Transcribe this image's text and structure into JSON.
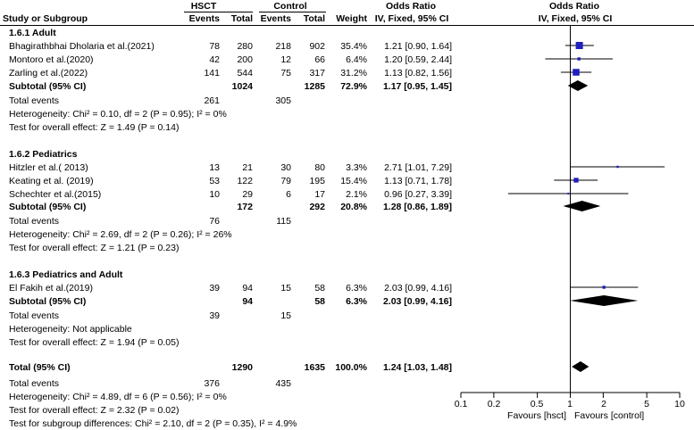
{
  "header": {
    "group1": "HSCT",
    "group2": "Control",
    "col_study": "Study or Subgroup",
    "col_events1": "Events",
    "col_total1": "Total",
    "col_events2": "Events",
    "col_total2": "Total",
    "col_weight": "Weight",
    "col_or_title": "Odds Ratio",
    "col_or_method": "IV, Fixed, 95% CI",
    "plot_title": "Odds Ratio",
    "plot_method": "IV, Fixed, 95% CI"
  },
  "sections": [
    {
      "title": "1.6.1 Adult",
      "studies": [
        {
          "name": "Bhagirathbhai Dholaria et al.(2021)",
          "e1": "78",
          "t1": "280",
          "e2": "218",
          "t2": "902",
          "weight": "35.4%",
          "ci_text": "1.21 [0.90, 1.64]"
        },
        {
          "name": "Montoro et al.(2020)",
          "e1": "42",
          "t1": "200",
          "e2": "12",
          "t2": "66",
          "weight": "6.4%",
          "ci_text": "1.20 [0.59, 2.44]"
        },
        {
          "name": "Zarling et al.(2022)",
          "e1": "141",
          "t1": "544",
          "e2": "75",
          "t2": "317",
          "weight": "31.2%",
          "ci_text": "1.13 [0.82, 1.56]"
        }
      ],
      "subtotal": {
        "label": "Subtotal (95% CI)",
        "t1": "1024",
        "t2": "1285",
        "weight": "72.9%",
        "ci_text": "1.17 [0.95, 1.45]"
      },
      "total_events": {
        "label": "Total events",
        "e1": "261",
        "e2": "305"
      },
      "heterogeneity": "Heterogeneity: Chi² = 0.10, df = 2 (P = 0.95); I² = 0%",
      "overall": "Test for overall effect: Z = 1.49 (P = 0.14)"
    },
    {
      "title": "1.6.2 Pediatrics",
      "studies": [
        {
          "name": "Hitzler et al.( 2013)",
          "e1": "13",
          "t1": "21",
          "e2": "30",
          "t2": "80",
          "weight": "3.3%",
          "ci_text": "2.71 [1.01, 7.29]"
        },
        {
          "name": "Keating et al. (2019)",
          "e1": "53",
          "t1": "122",
          "e2": "79",
          "t2": "195",
          "weight": "15.4%",
          "ci_text": "1.13 [0.71, 1.78]"
        },
        {
          "name": "Schechter et al.(2015)",
          "e1": "10",
          "t1": "29",
          "e2": "6",
          "t2": "17",
          "weight": "2.1%",
          "ci_text": "0.96 [0.27, 3.39]"
        }
      ],
      "subtotal": {
        "label": "Subtotal (95% CI)",
        "t1": "172",
        "t2": "292",
        "weight": "20.8%",
        "ci_text": "1.28 [0.86, 1.89]"
      },
      "total_events": {
        "label": "Total events",
        "e1": "76",
        "e2": "115"
      },
      "heterogeneity": "Heterogeneity: Chi² = 2.69, df = 2 (P = 0.26); I² = 26%",
      "overall": "Test for overall effect: Z = 1.21 (P = 0.23)"
    },
    {
      "title": "1.6.3 Pediatrics and Adult",
      "studies": [
        {
          "name": "El Fakih et al.(2019)",
          "e1": "39",
          "t1": "94",
          "e2": "15",
          "t2": "58",
          "weight": "6.3%",
          "ci_text": "2.03 [0.99, 4.16]"
        }
      ],
      "subtotal": {
        "label": "Subtotal (95% CI)",
        "t1": "94",
        "t2": "58",
        "weight": "6.3%",
        "ci_text": "2.03 [0.99, 4.16]"
      },
      "total_events": {
        "label": "Total events",
        "e1": "39",
        "e2": "15"
      },
      "heterogeneity": "Heterogeneity: Not applicable",
      "overall": "Test for overall effect: Z = 1.94 (P = 0.05)"
    }
  ],
  "total": {
    "label": "Total (95% CI)",
    "t1": "1290",
    "t2": "1635",
    "weight": "100.0%",
    "ci_text": "1.24 [1.03, 1.48]",
    "events_label": "Total events",
    "e1": "376",
    "e2": "435",
    "heterogeneity": "Heterogeneity: Chi² = 4.89, df = 6 (P = 0.56); I² = 0%",
    "overall": "Test for overall effect: Z = 2.32 (P = 0.02)",
    "subgroup": "Test for subgroup differences: Chi² = 2.10, df = 2 (P = 0.35), I² = 4.9%"
  },
  "axis": {
    "ticks": [
      "0.1",
      "0.2",
      "0.5",
      "1",
      "2",
      "5",
      "10"
    ],
    "favours_left": "Favours [hsct]",
    "favours_right": "Favours [control]"
  },
  "colors": {
    "study_marker": "#1f1fbf",
    "diamond": "#000000"
  },
  "chart_data": {
    "type": "forest",
    "scale": "log",
    "xlim": [
      0.1,
      10
    ],
    "xticks": [
      0.1,
      0.2,
      0.5,
      1,
      2,
      5,
      10
    ],
    "studies": [
      {
        "name": "Bhagirathbhai Dholaria et al.(2021)",
        "group": "1.6.1 Adult",
        "or": 1.21,
        "lo": 0.9,
        "hi": 1.64,
        "weight": 35.4
      },
      {
        "name": "Montoro et al.(2020)",
        "group": "1.6.1 Adult",
        "or": 1.2,
        "lo": 0.59,
        "hi": 2.44,
        "weight": 6.4
      },
      {
        "name": "Zarling et al.(2022)",
        "group": "1.6.1 Adult",
        "or": 1.13,
        "lo": 0.82,
        "hi": 1.56,
        "weight": 31.2
      },
      {
        "name": "Hitzler et al.( 2013)",
        "group": "1.6.2 Pediatrics",
        "or": 2.71,
        "lo": 1.01,
        "hi": 7.29,
        "weight": 3.3
      },
      {
        "name": "Keating et al. (2019)",
        "group": "1.6.2 Pediatrics",
        "or": 1.13,
        "lo": 0.71,
        "hi": 1.78,
        "weight": 15.4
      },
      {
        "name": "Schechter et al.(2015)",
        "group": "1.6.2 Pediatrics",
        "or": 0.96,
        "lo": 0.27,
        "hi": 3.39,
        "weight": 2.1
      },
      {
        "name": "El Fakih et al.(2019)",
        "group": "1.6.3 Pediatrics and Adult",
        "or": 2.03,
        "lo": 0.99,
        "hi": 4.16,
        "weight": 6.3
      }
    ],
    "subtotals": [
      {
        "group": "1.6.1 Adult",
        "or": 1.17,
        "lo": 0.95,
        "hi": 1.45
      },
      {
        "group": "1.6.2 Pediatrics",
        "or": 1.28,
        "lo": 0.86,
        "hi": 1.89
      },
      {
        "group": "1.6.3 Pediatrics and Adult",
        "or": 2.03,
        "lo": 0.99,
        "hi": 4.16
      }
    ],
    "overall": {
      "or": 1.24,
      "lo": 1.03,
      "hi": 1.48
    }
  }
}
